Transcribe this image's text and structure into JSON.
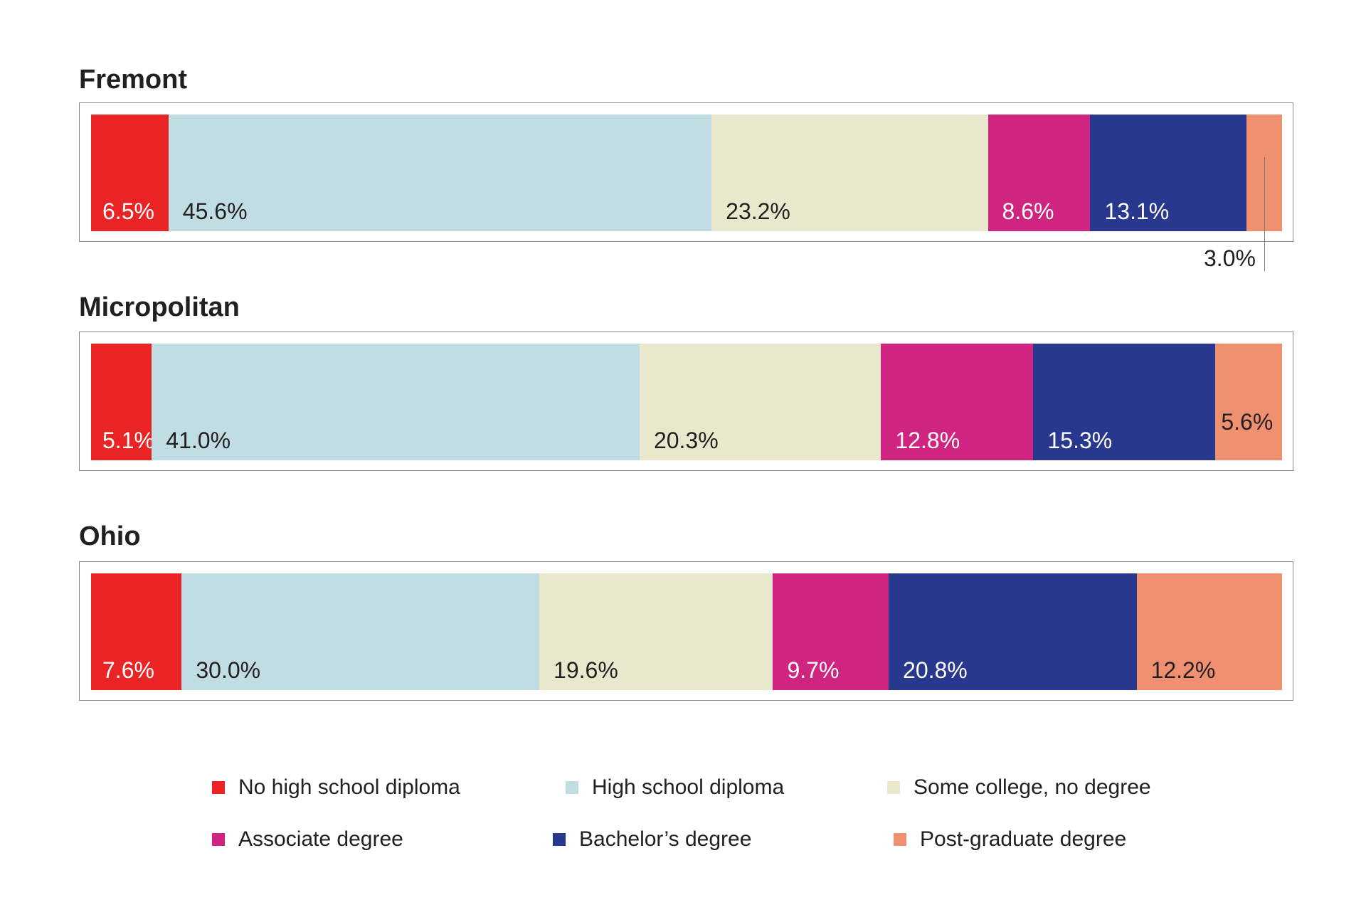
{
  "chart_data": {
    "type": "bar",
    "orientation": "horizontal",
    "stacked": true,
    "percent_stacked": true,
    "categories": [
      "Fremont",
      "Micropolitan",
      "Ohio"
    ],
    "series": [
      {
        "name": "No high school diploma",
        "color": "#ea2424",
        "label_color": "#ffffff",
        "values": [
          6.5,
          5.1,
          7.6
        ],
        "labels": [
          "6.5%",
          "5.1%",
          "7.6%"
        ]
      },
      {
        "name": "High school diploma",
        "color": "#bfdde3",
        "label_color": "#231f20",
        "values": [
          45.6,
          41.0,
          30.0
        ],
        "labels": [
          "45.6%",
          "41.0%",
          "30.0%"
        ]
      },
      {
        "name": "Some college, no degree",
        "color": "#eae8cc",
        "label_color": "#231f20",
        "values": [
          23.2,
          20.3,
          19.6
        ],
        "labels": [
          "23.2%",
          "20.3%",
          "19.6%"
        ]
      },
      {
        "name": "Associate degree",
        "color": "#cf2480",
        "label_color": "#ffffff",
        "values": [
          8.6,
          12.8,
          9.7
        ],
        "labels": [
          "8.6%",
          "12.8%",
          "9.7%"
        ]
      },
      {
        "name": "Bachelor’s degree",
        "color": "#29388f",
        "label_color": "#ffffff",
        "values": [
          13.1,
          15.3,
          20.8
        ],
        "labels": [
          "13.1%",
          "15.3%",
          "20.8%"
        ]
      },
      {
        "name": "Post-graduate degree",
        "color": "#ef9170",
        "label_color": "#231f20",
        "values": [
          3.0,
          5.6,
          12.2
        ],
        "labels": [
          "3.0%",
          "5.6%",
          "12.2%"
        ]
      }
    ],
    "legend_position": "bottom",
    "grid": false
  }
}
